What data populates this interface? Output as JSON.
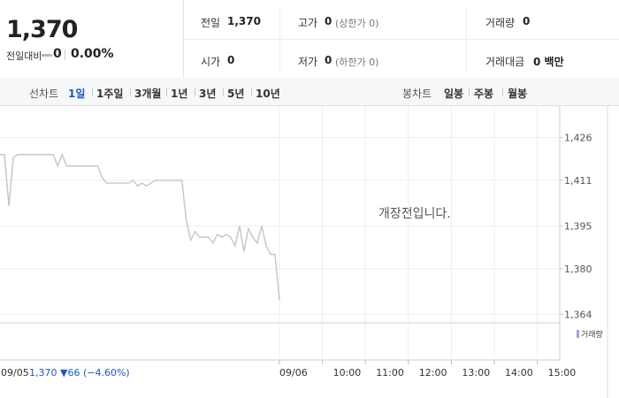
{
  "header": {
    "price": "1,370",
    "change_label": "전일대비",
    "change": "0",
    "change_rate": "0.00%"
  },
  "stats": [
    {
      "label": "전일",
      "value": "1,370"
    },
    {
      "label": "고가",
      "value": "0",
      "note": "(상한가 0)"
    },
    {
      "label": "거래량",
      "value": "0"
    },
    {
      "label": "시가",
      "value": "0"
    },
    {
      "label": "저가",
      "value": "0",
      "note": "(하한가 0)"
    },
    {
      "label": "거래대금",
      "value": "0 백만"
    }
  ],
  "tabs": {
    "line_label": "선차트",
    "line": [
      "1일",
      "1주일",
      "3개월",
      "1년",
      "3년",
      "5년",
      "10년"
    ],
    "candle_label": "봉차트",
    "candle": [
      "일봉",
      "주봉",
      "월봉"
    ]
  },
  "chart_data": {
    "type": "line",
    "message": "개장전입니다.",
    "volume_label": "거래량",
    "prev_date": "09/05",
    "prev_summary": "1,370 ▼66 (−4.60%)",
    "x_labels": [
      "09/06",
      "10:00",
      "11:00",
      "12:00",
      "13:00",
      "14:00",
      "15:00"
    ],
    "color": "#c8c8c8",
    "values": [
      1420,
      1420,
      1402,
      1419,
      1420,
      1420,
      1420,
      1420,
      1420,
      1420,
      1420,
      1420,
      1420,
      1416,
      1420,
      1416,
      1416,
      1416,
      1416,
      1416,
      1416,
      1416,
      1416,
      1412,
      1410,
      1410,
      1410,
      1410,
      1410,
      1410,
      1411,
      1409,
      1410,
      1409,
      1410,
      1411,
      1411,
      1411,
      1411,
      1411,
      1411,
      1411,
      1397,
      1390,
      1393,
      1391,
      1391,
      1391,
      1389,
      1392,
      1391,
      1392,
      1391,
      1388,
      1395,
      1386,
      1394,
      1391,
      1389,
      1395,
      1388,
      1385,
      1385,
      1369
    ],
    "ylim": [
      1361,
      1437
    ],
    "yticks": [
      {
        "value": 1426,
        "label": "1,426"
      },
      {
        "value": 1411,
        "label": "1,411"
      },
      {
        "value": 1395,
        "label": "1,395"
      },
      {
        "value": 1380,
        "label": "1,380"
      },
      {
        "value": 1364,
        "label": "1,364"
      }
    ],
    "grid": true
  }
}
